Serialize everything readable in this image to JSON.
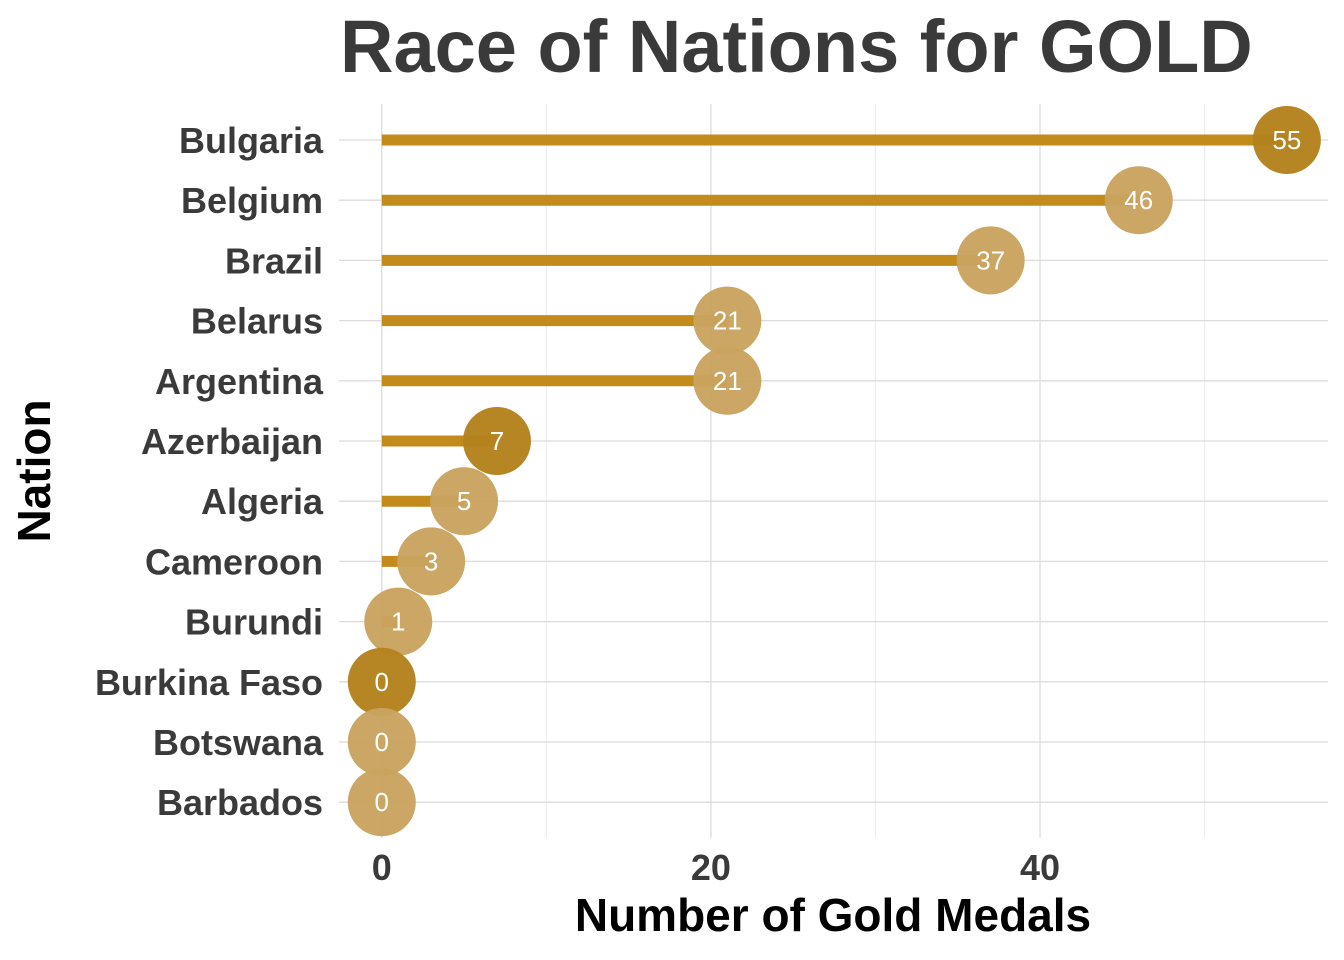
{
  "chart_data": {
    "type": "lollipop",
    "title": "Race of Nations for GOLD",
    "xlabel": "Number of Gold Medals",
    "ylabel": "Nation",
    "xlim": [
      -2.6,
      57.5
    ],
    "x_ticks": [
      0,
      20,
      40
    ],
    "grid": true,
    "categories": [
      "Bulgaria",
      "Belgium",
      "Brazil",
      "Belarus",
      "Argentina",
      "Azerbaijan",
      "Algeria",
      "Cameroon",
      "Burundi",
      "Burkina Faso",
      "Botswana",
      "Barbados"
    ],
    "values": [
      55,
      46,
      37,
      21,
      21,
      7,
      5,
      3,
      1,
      0,
      0,
      0
    ],
    "highlighted": [
      "Bulgaria",
      "Azerbaijan",
      "Burkina Faso"
    ],
    "colors": {
      "stem": "#c38a1c",
      "dot": "#c9a35f",
      "dot_highlight": "#b4821e",
      "label": "#ffffff",
      "text": "#3a3a3a",
      "grid": "#dcdcdc"
    }
  }
}
